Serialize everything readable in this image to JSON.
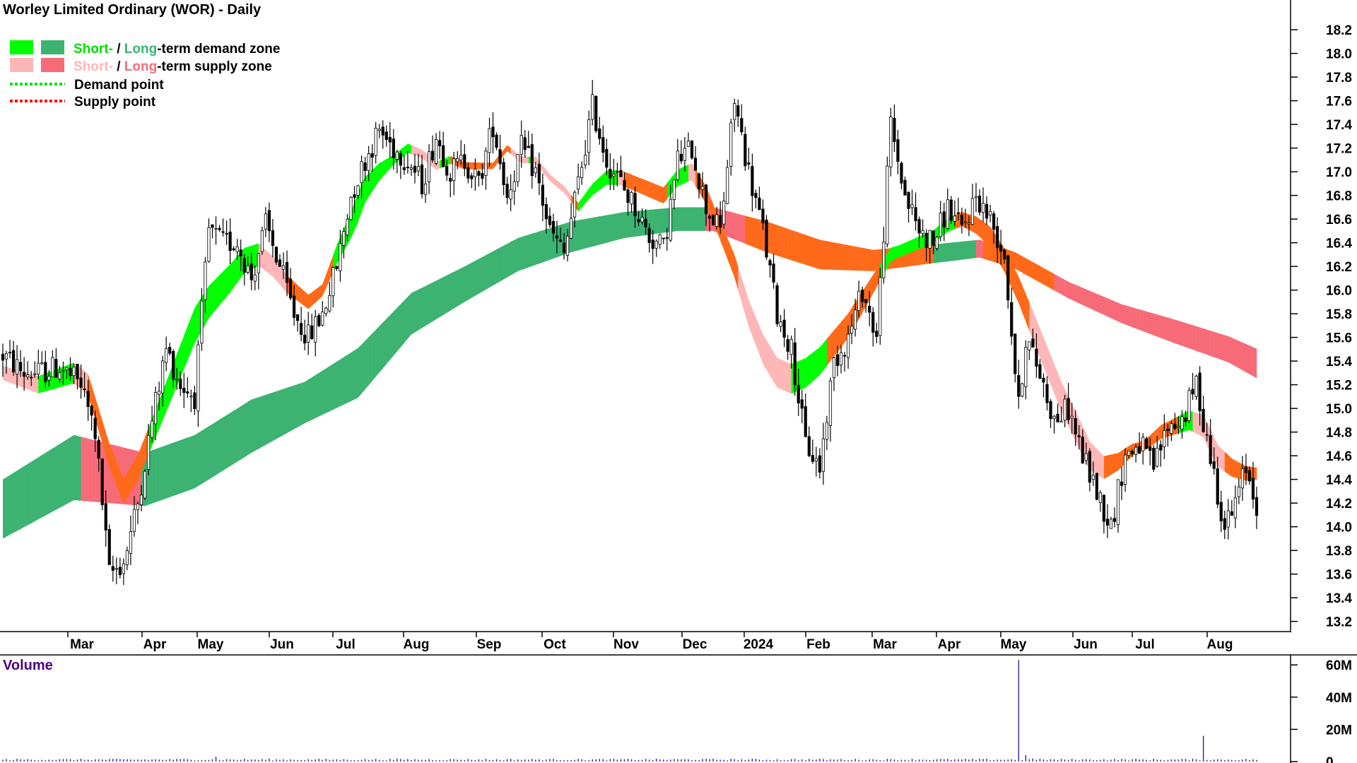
{
  "chart_data": {
    "type": "candlestick",
    "title": "Worley Limited Ordinary (WOR) - Daily",
    "y_ticks": [
      13.2,
      13.4,
      13.6,
      13.8,
      14.0,
      14.2,
      14.4,
      14.6,
      14.8,
      15.0,
      15.2,
      15.4,
      15.6,
      15.8,
      16.0,
      16.2,
      16.4,
      16.6,
      16.8,
      17.0,
      17.2,
      17.4,
      17.6,
      17.8,
      18.0,
      18.2
    ],
    "ylim": [
      13.12,
      18.32
    ],
    "month_labels": [
      "Mar",
      "Apr",
      "May",
      "Jun",
      "Jul",
      "Aug",
      "Sep",
      "Oct",
      "Nov",
      "Dec",
      "2024",
      "Feb",
      "Mar",
      "Apr",
      "May",
      "Jun",
      "Jul",
      "Aug"
    ],
    "legend": {
      "zone_demand_short": "Short-",
      "zone_demand_sep": " / ",
      "zone_demand_long": "Long",
      "zone_demand_rest": "-term demand zone",
      "zone_supply_short": "Short-",
      "zone_supply_sep": " / ",
      "zone_supply_long": "Long",
      "zone_supply_rest": "-term supply zone",
      "demand_point": "Demand point",
      "supply_point": "Supply point"
    },
    "colors": {
      "short_demand": "#00ff00",
      "long_demand": "#3cb371",
      "short_supply": "#ffb6b6",
      "long_supply": "#f76b78",
      "crossover": "#ff6a1a",
      "candle": "#000000",
      "volume": "#3333aa"
    },
    "price_anchors": [
      [
        0,
        15.45
      ],
      [
        6,
        15.3
      ],
      [
        10,
        15.3
      ],
      [
        16,
        15.35
      ],
      [
        22,
        15.2
      ],
      [
        26,
        14.8
      ],
      [
        30,
        13.6
      ],
      [
        34,
        13.7
      ],
      [
        38,
        14.2
      ],
      [
        42,
        14.9
      ],
      [
        46,
        15.5
      ],
      [
        50,
        15.2
      ],
      [
        54,
        15.1
      ],
      [
        58,
        16.5
      ],
      [
        62,
        16.4
      ],
      [
        66,
        16.4
      ],
      [
        70,
        16.1
      ],
      [
        74,
        16.55
      ],
      [
        78,
        16.2
      ],
      [
        82,
        15.8
      ],
      [
        86,
        15.6
      ],
      [
        90,
        15.8
      ],
      [
        94,
        16.2
      ],
      [
        98,
        16.8
      ],
      [
        102,
        17.1
      ],
      [
        106,
        17.35
      ],
      [
        110,
        17.2
      ],
      [
        114,
        17.1
      ],
      [
        118,
        16.9
      ],
      [
        122,
        17.3
      ],
      [
        126,
        17.0
      ],
      [
        130,
        17.1
      ],
      [
        134,
        16.9
      ],
      [
        138,
        17.4
      ],
      [
        142,
        16.8
      ],
      [
        146,
        17.2
      ],
      [
        150,
        17.0
      ],
      [
        154,
        16.5
      ],
      [
        158,
        16.3
      ],
      [
        162,
        16.9
      ],
      [
        166,
        17.55
      ],
      [
        170,
        17.1
      ],
      [
        174,
        16.9
      ],
      [
        178,
        16.7
      ],
      [
        182,
        16.45
      ],
      [
        186,
        16.35
      ],
      [
        190,
        17.1
      ],
      [
        194,
        17.2
      ],
      [
        198,
        16.7
      ],
      [
        202,
        16.5
      ],
      [
        206,
        17.6
      ],
      [
        210,
        17.0
      ],
      [
        214,
        16.5
      ],
      [
        218,
        15.8
      ],
      [
        222,
        15.5
      ],
      [
        226,
        14.7
      ],
      [
        230,
        14.5
      ],
      [
        234,
        15.4
      ],
      [
        238,
        15.6
      ],
      [
        242,
        16.0
      ],
      [
        246,
        15.6
      ],
      [
        250,
        17.4
      ],
      [
        254,
        16.8
      ],
      [
        258,
        16.5
      ],
      [
        262,
        16.4
      ],
      [
        266,
        16.7
      ],
      [
        270,
        16.5
      ],
      [
        274,
        16.8
      ],
      [
        278,
        16.6
      ],
      [
        282,
        16.3
      ],
      [
        286,
        15.0
      ],
      [
        288,
        15.6
      ],
      [
        292,
        15.3
      ],
      [
        296,
        14.9
      ],
      [
        300,
        15.0
      ],
      [
        304,
        14.6
      ],
      [
        308,
        14.3
      ],
      [
        312,
        14.0
      ],
      [
        316,
        14.6
      ],
      [
        320,
        14.7
      ],
      [
        324,
        14.5
      ],
      [
        328,
        14.85
      ],
      [
        332,
        14.9
      ],
      [
        336,
        15.2
      ],
      [
        338,
        14.9
      ],
      [
        342,
        14.3
      ],
      [
        344,
        14.0
      ],
      [
        346,
        14.1
      ],
      [
        350,
        14.5
      ],
      [
        353,
        14.2
      ]
    ],
    "short_demand_line": [
      [
        0,
        15.3
      ],
      [
        10,
        15.2
      ],
      [
        20,
        15.3
      ],
      [
        24,
        15.2
      ],
      [
        30,
        14.6
      ],
      [
        34,
        14.3
      ],
      [
        38,
        14.5
      ],
      [
        42,
        14.8
      ],
      [
        46,
        15.1
      ],
      [
        50,
        15.4
      ],
      [
        54,
        15.7
      ],
      [
        58,
        15.9
      ],
      [
        64,
        16.1
      ],
      [
        68,
        16.25
      ],
      [
        72,
        16.3
      ],
      [
        76,
        16.2
      ],
      [
        80,
        16.05
      ],
      [
        86,
        15.9
      ],
      [
        90,
        16.0
      ],
      [
        94,
        16.3
      ],
      [
        98,
        16.55
      ],
      [
        102,
        16.85
      ],
      [
        106,
        17.0
      ],
      [
        110,
        17.1
      ],
      [
        114,
        17.2
      ],
      [
        118,
        17.15
      ],
      [
        122,
        17.05
      ],
      [
        126,
        17.1
      ],
      [
        130,
        17.05
      ],
      [
        134,
        17.05
      ],
      [
        138,
        17.05
      ],
      [
        142,
        17.2
      ],
      [
        146,
        17.1
      ],
      [
        150,
        17.1
      ],
      [
        154,
        16.95
      ],
      [
        158,
        16.85
      ],
      [
        162,
        16.7
      ],
      [
        166,
        16.85
      ],
      [
        170,
        16.95
      ],
      [
        174,
        16.95
      ],
      [
        178,
        16.9
      ],
      [
        182,
        16.85
      ],
      [
        186,
        16.8
      ],
      [
        190,
        16.95
      ],
      [
        194,
        17.0
      ],
      [
        198,
        16.8
      ],
      [
        202,
        16.5
      ],
      [
        206,
        16.2
      ],
      [
        210,
        15.8
      ],
      [
        214,
        15.5
      ],
      [
        218,
        15.3
      ],
      [
        222,
        15.25
      ],
      [
        226,
        15.3
      ],
      [
        230,
        15.4
      ],
      [
        234,
        15.55
      ],
      [
        238,
        15.7
      ],
      [
        242,
        15.9
      ],
      [
        246,
        16.1
      ],
      [
        250,
        16.3
      ],
      [
        254,
        16.35
      ],
      [
        258,
        16.4
      ],
      [
        262,
        16.45
      ],
      [
        266,
        16.55
      ],
      [
        270,
        16.6
      ],
      [
        274,
        16.55
      ],
      [
        278,
        16.45
      ],
      [
        282,
        16.25
      ],
      [
        286,
        16.0
      ],
      [
        290,
        15.7
      ],
      [
        294,
        15.4
      ],
      [
        298,
        15.1
      ],
      [
        302,
        14.85
      ],
      [
        306,
        14.6
      ],
      [
        310,
        14.5
      ],
      [
        314,
        14.55
      ],
      [
        318,
        14.65
      ],
      [
        322,
        14.7
      ],
      [
        326,
        14.8
      ],
      [
        330,
        14.85
      ],
      [
        334,
        14.9
      ],
      [
        338,
        14.85
      ],
      [
        342,
        14.6
      ],
      [
        346,
        14.5
      ],
      [
        350,
        14.45
      ],
      [
        353,
        14.45
      ]
    ],
    "short_zone_width": [
      [
        0,
        0.12
      ],
      [
        30,
        0.2
      ],
      [
        40,
        0.22
      ],
      [
        54,
        0.3
      ],
      [
        70,
        0.2
      ],
      [
        90,
        0.1
      ],
      [
        100,
        0.25
      ],
      [
        110,
        0.08
      ],
      [
        140,
        0.05
      ],
      [
        160,
        0.06
      ],
      [
        170,
        0.12
      ],
      [
        200,
        0.15
      ],
      [
        214,
        0.25
      ],
      [
        226,
        0.25
      ],
      [
        240,
        0.2
      ],
      [
        252,
        0.1
      ],
      [
        270,
        0.12
      ],
      [
        290,
        0.25
      ],
      [
        305,
        0.25
      ],
      [
        320,
        0.08
      ],
      [
        340,
        0.2
      ],
      [
        353,
        0.1
      ]
    ],
    "long_zone_center": [
      [
        0,
        14.15
      ],
      [
        20,
        14.5
      ],
      [
        40,
        14.4
      ],
      [
        54,
        14.55
      ],
      [
        70,
        14.85
      ],
      [
        85,
        15.05
      ],
      [
        100,
        15.3
      ],
      [
        115,
        15.8
      ],
      [
        130,
        16.05
      ],
      [
        145,
        16.3
      ],
      [
        160,
        16.45
      ],
      [
        175,
        16.55
      ],
      [
        190,
        16.6
      ],
      [
        200,
        16.6
      ],
      [
        215,
        16.45
      ],
      [
        230,
        16.3
      ],
      [
        245,
        16.25
      ],
      [
        260,
        16.3
      ],
      [
        275,
        16.35
      ],
      [
        285,
        16.25
      ],
      [
        300,
        16.0
      ],
      [
        315,
        15.8
      ],
      [
        330,
        15.65
      ],
      [
        345,
        15.5
      ],
      [
        353,
        15.38
      ]
    ],
    "long_zone_width": [
      [
        0,
        0.5
      ],
      [
        20,
        0.55
      ],
      [
        40,
        0.45
      ],
      [
        54,
        0.45
      ],
      [
        70,
        0.45
      ],
      [
        85,
        0.35
      ],
      [
        100,
        0.42
      ],
      [
        115,
        0.35
      ],
      [
        130,
        0.3
      ],
      [
        145,
        0.28
      ],
      [
        160,
        0.26
      ],
      [
        175,
        0.22
      ],
      [
        190,
        0.2
      ],
      [
        200,
        0.2
      ],
      [
        215,
        0.26
      ],
      [
        230,
        0.25
      ],
      [
        245,
        0.18
      ],
      [
        260,
        0.16
      ],
      [
        275,
        0.15
      ],
      [
        285,
        0.14
      ],
      [
        300,
        0.14
      ],
      [
        315,
        0.16
      ],
      [
        330,
        0.2
      ],
      [
        345,
        0.22
      ],
      [
        353,
        0.25
      ]
    ],
    "volume_panel": {
      "title": "Volume",
      "y_ticks_labels": [
        "60M",
        "40M",
        "20M",
        "0"
      ],
      "y_ticks_values": [
        60,
        40,
        20,
        0
      ],
      "ymax": 64,
      "spikes": [
        [
          60,
          3
        ],
        [
          286,
          63
        ],
        [
          288,
          4
        ],
        [
          290,
          2
        ],
        [
          338,
          16
        ]
      ],
      "base_volume_m": 1.2
    }
  }
}
